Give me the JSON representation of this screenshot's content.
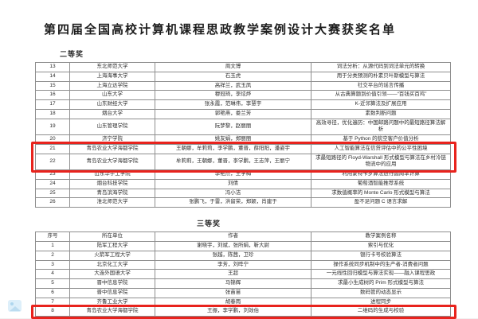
{
  "title": "第四届全国高校计算机课程思政教学案例设计大赛获奖名单",
  "highlight_color": "#e8231d",
  "footer_icon": {
    "name": "image-icon",
    "color": "#ddeffa"
  },
  "sections": [
    {
      "label": "二等奖",
      "show_header": false,
      "columns": [
        "序号",
        "所在单位",
        "作者",
        "教学案例名称"
      ],
      "rows": [
        [
          "13",
          "东北师范大学",
          "周文博",
          "词法分析：从源代码到词法单元的转换"
        ],
        [
          "14",
          "上海海事大学",
          "石玉虎",
          "用于分类预测的朴素贝叶斯模型与算法"
        ],
        [
          "15",
          "上海立达学院",
          "高祥兰，武玉凤",
          "社交平台的谣言传播"
        ],
        [
          "16",
          "山东大学",
          "穆冠琦，李炫烨",
          "从古典算题到价值引领——“百钱买百鸡”"
        ],
        [
          "17",
          "山东财经大学",
          "张永霞，范琳伟，李慧宇",
          "K-近邻算法及扩展应用"
        ],
        [
          "18",
          "烟台大学",
          "郭艳燕，娄兰芳",
          "素数判断问题"
        ],
        [
          "19",
          "山东管理学院",
          "阮梦黎，赵丽丽",
          "高效寻径，优化遍历：中国邮路问题中的最短路径算法解析"
        ],
        [
          "20",
          "济宁学院",
          "姚友娟，郑丽丽",
          "基于 Python 的航空客户价值分析"
        ],
        [
          "21",
          "青岛农业大学海都学院",
          "王朝娜，牟莉莉，李学鹏，董晋，薛阳阳，潘姿宇",
          "人工智能算法在信贷评估中的公平性困境"
        ],
        [
          "22",
          "青岛农业大学海都学院",
          "牟莉莉，王朝娜，董晋，李学鹏，王志萍，王丽宁",
          "求最短路径的 Floyd-Warshall 形式模型与算法在乡村冷链物流中的应用"
        ],
        [
          "23",
          "山东华宇工学院",
          "李艳杰，王学梅",
          "利用蒙特卡罗算法进行圆周率计算"
        ],
        [
          "24",
          "烟台科技学院",
          "刘倩",
          "葡萄酒智能推荐系统"
        ],
        [
          "25",
          "青岛滨海学院",
          "冯小洁",
          "求数值概率的 Monte Carlo 形式模型与算法"
        ],
        [
          "26",
          "淮北师范大学",
          "张鹏飞，于雷，洪留荣，郑颖，肖建于",
          "盈不足问题 C 语言求解"
        ]
      ],
      "highlight_rows": [
        8,
        9
      ]
    },
    {
      "label": "三等奖",
      "show_header": true,
      "columns": [
        "序号",
        "所在单位",
        "作者",
        "教学案例名称"
      ],
      "rows": [
        [
          "1",
          "陆军工程大学",
          "谢晓宇，刘斌，张所娟，靳大尉",
          "索引与优化"
        ],
        [
          "2",
          "火箭军工程大学",
          "张越，陈茜，卫珍",
          "银行卡号校验算法"
        ],
        [
          "3",
          "北京化工大学",
          "李芳，刘晔宁",
          "操作系统同步机制中的生产者-消费者问题"
        ],
        [
          "4",
          "大连外国语大学",
          "王超",
          "一元线性回归模型与算法实现——融入课程思政"
        ],
        [
          "5",
          "晋中信息学院",
          "马锦辉",
          "求最小生成树的 Prim 形式模型与算法"
        ],
        [
          "6",
          "晋中信息学院",
          "张苗苗",
          "数码管的动态显示"
        ],
        [
          "7",
          "齐鲁工业大学",
          "胡春雨",
          "进程同步"
        ],
        [
          "8",
          "青岛农业大学海都学院",
          "王振，李学鹏，刘效伯",
          "二维码的生成与校验"
        ]
      ],
      "highlight_rows": [
        7
      ]
    }
  ]
}
